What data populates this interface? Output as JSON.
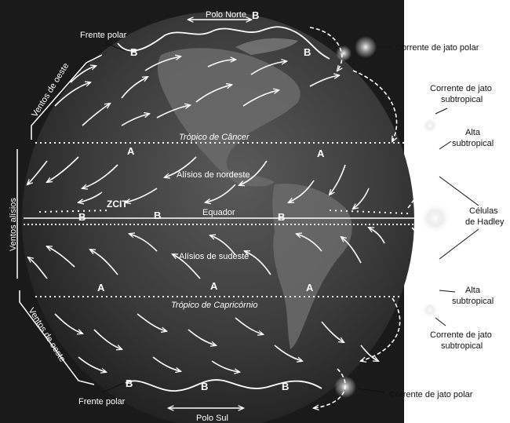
{
  "labels": {
    "polo_norte": "Polo Norte",
    "polo_sul": "Polo Sul",
    "frente_polar_top": "Frente polar",
    "frente_polar_bottom": "Frente polar",
    "ventos_oeste_top": "Ventos de oeste",
    "ventos_oeste_bottom": "Ventos de oeste",
    "ventos_alisios": "Ventos alísios",
    "tropico_cancer": "Trópico de Câncer",
    "tropico_capricornio": "Trópico de Capricórnio",
    "alisios_nordeste": "Alísios de nordeste",
    "alisios_sudeste": "Alísios de sudeste",
    "equador": "Equador",
    "zcit": "ZCIT",
    "jato_polar_top": "Corrente de jato polar",
    "jato_polar_bottom": "Corrente de jato polar",
    "jato_subtropical_top_1": "Corrente de jato",
    "jato_subtropical_top_2": "subtropical",
    "jato_subtropical_bottom_1": "Corrente de jato",
    "jato_subtropical_bottom_2": "subtropical",
    "alta_subtropical_top_1": "Alta",
    "alta_subtropical_top_2": "subtropical",
    "alta_subtropical_bottom_1": "Alta",
    "alta_subtropical_bottom_2": "subtropical",
    "celulas_hadley_1": "Células",
    "celulas_hadley_2": "de Hadley"
  },
  "pressure_markers": {
    "high": "A",
    "low": "B"
  },
  "colors": {
    "background": "#1a1a1a",
    "globe": "#3a3a3a",
    "arrows": "#ffffff",
    "labels_outside": "#111111"
  }
}
